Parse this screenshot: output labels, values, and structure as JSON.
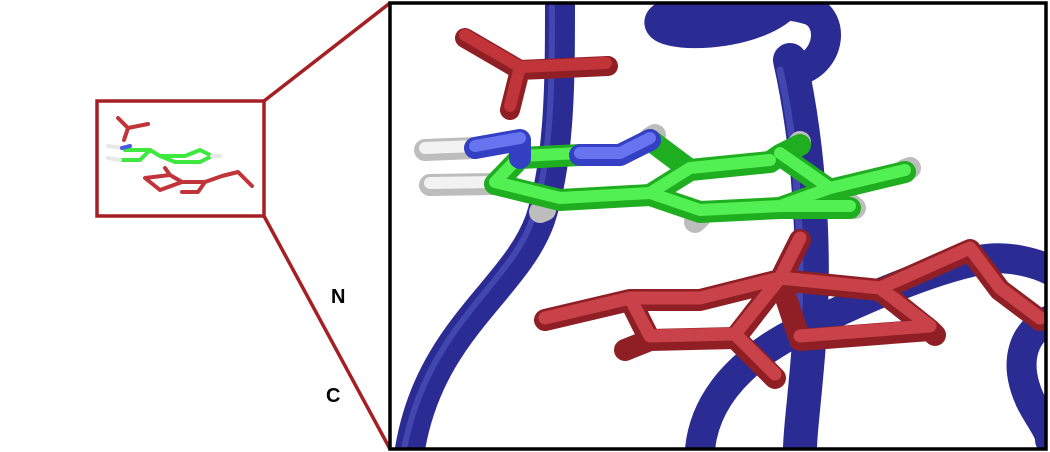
{
  "figure": {
    "terminus_labels": {
      "n": "N",
      "c": "C"
    },
    "colors": {
      "backbone": "#2e2f9c",
      "backbone_highlight": "#5a5cd0",
      "ligand_carbon": "#3ee83e",
      "nitrogen": "#4a58e6",
      "hydrogen": "#e8e8e8",
      "residue": "#c0343a",
      "residue_dark": "#8f1f24",
      "zoom_frame": "#a52024",
      "inset_border": "#000000",
      "label": "#000000"
    },
    "icons": {
      "overview": "protein-backbone-cartoon",
      "inset": "binding-site-zoom"
    }
  }
}
